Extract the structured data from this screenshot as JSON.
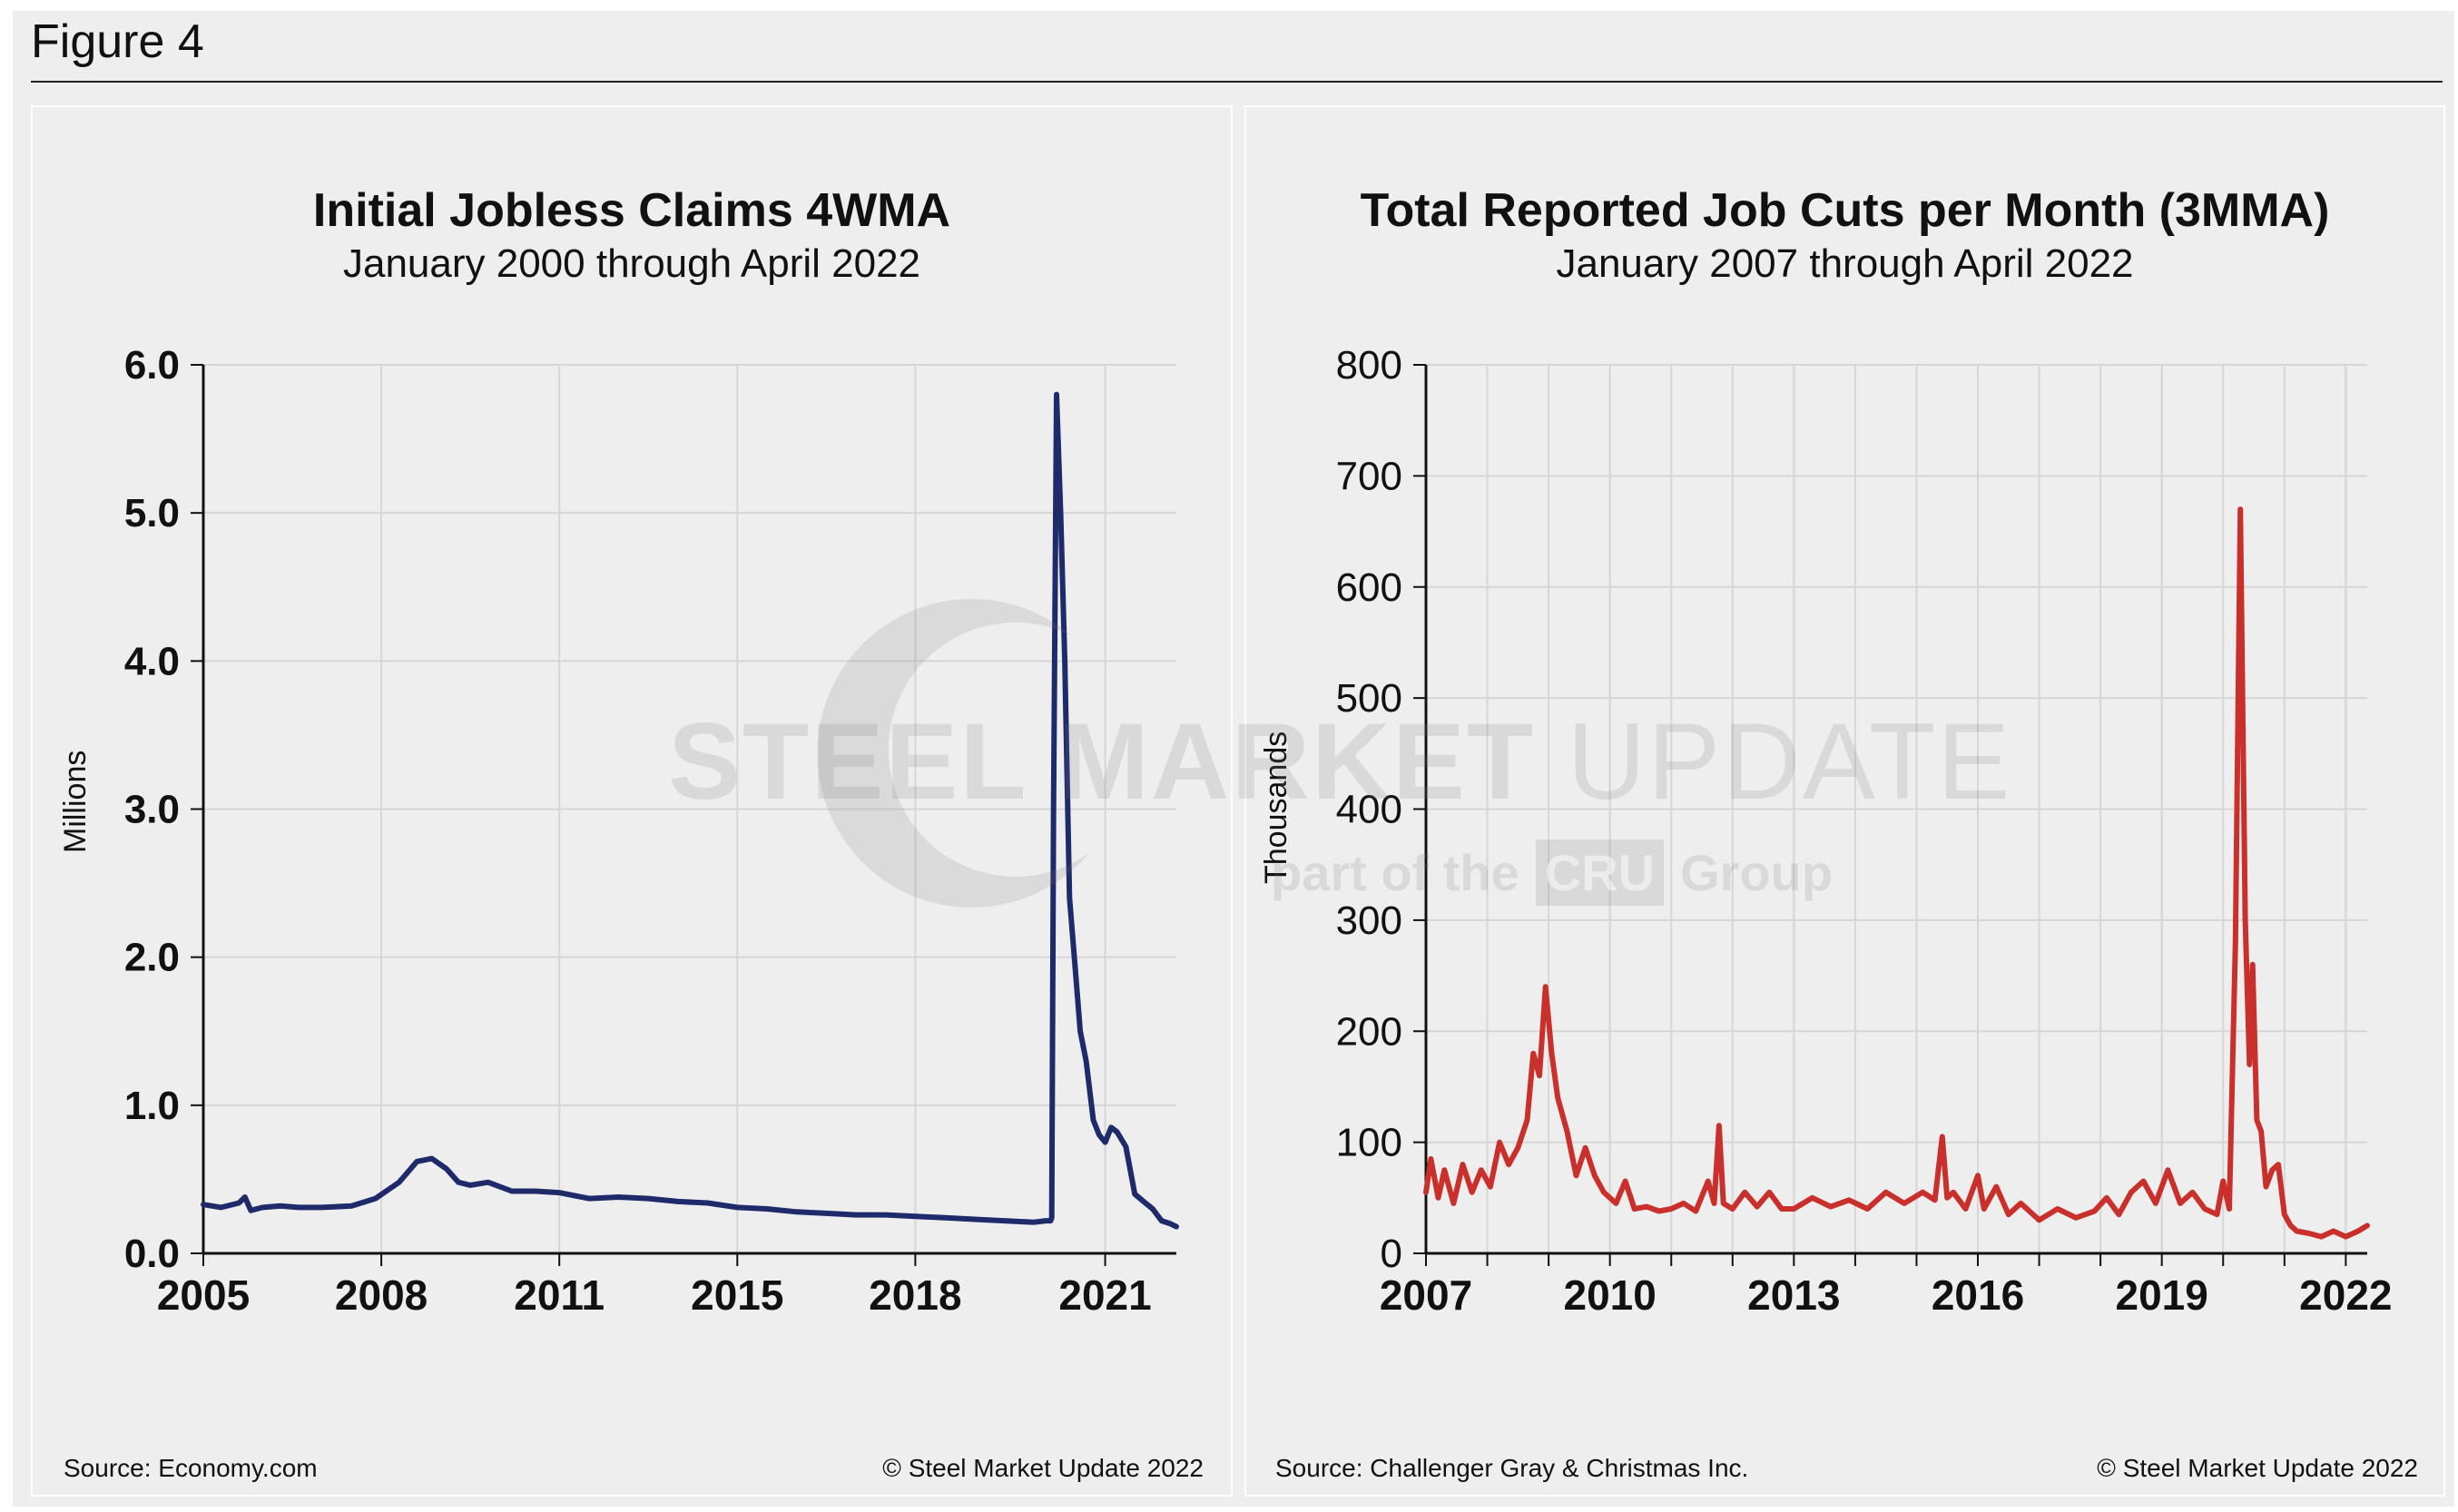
{
  "figure": {
    "title": "Figure 4"
  },
  "panels": [
    {
      "title": "Initial Jobless Claims 4WMA",
      "subtitle": "January 2000 through April 2022",
      "source": "Source: Economy.com",
      "copyright": "© Steel Market Update 2022"
    },
    {
      "title": "Total Reported Job Cuts per Month (3MMA)",
      "subtitle": "January 2007 through April 2022",
      "source": "Source: Challenger Gray & Christmas Inc.",
      "copyright": "© Steel Market Update 2022"
    }
  ],
  "watermark": {
    "line1_bold": "STEEL MARKET",
    "line1_light": "UPDATE",
    "line2_pre": "part of the",
    "line2_box": "CRU",
    "line2_post": "Group"
  },
  "chart_data": [
    {
      "type": "line",
      "title": "Initial Jobless Claims 4WMA",
      "subtitle": "January 2000 through April 2022",
      "xlabel": "",
      "ylabel": "Millions",
      "ylim": [
        0,
        6
      ],
      "xlim": [
        2005,
        2021.4
      ],
      "yticks": [
        "0.0",
        "1.0",
        "2.0",
        "3.0",
        "4.0",
        "5.0",
        "6.0"
      ],
      "xtick_labels": [
        {
          "label": "2005",
          "x": 2005
        },
        {
          "label": "2008",
          "x": 2008
        },
        {
          "label": "2011",
          "x": 2011
        },
        {
          "label": "2015",
          "x": 2014
        },
        {
          "label": "2018",
          "x": 2017
        },
        {
          "label": "2021",
          "x": 2020.2
        }
      ],
      "grid": true,
      "color": "#1f2a6b",
      "series": [
        {
          "x": [
            2005.0,
            2005.3,
            2005.6,
            2005.7,
            2005.8,
            2006.0,
            2006.3,
            2006.6,
            2007.0,
            2007.5,
            2007.9,
            2008.3,
            2008.6,
            2008.85,
            2009.1,
            2009.3,
            2009.5,
            2009.8,
            2010.2,
            2010.6,
            2011.0,
            2011.5,
            2012.0,
            2012.5,
            2013.0,
            2013.5,
            2014.0,
            2014.5,
            2015.0,
            2015.5,
            2016.0,
            2016.5,
            2017.0,
            2017.5,
            2018.0,
            2018.5,
            2019.0,
            2019.2,
            2019.28,
            2019.3,
            2019.33,
            2019.38,
            2019.45,
            2019.52,
            2019.6,
            2019.68,
            2019.78,
            2019.88,
            2020.0,
            2020.1,
            2020.2,
            2020.3,
            2020.4,
            2020.55,
            2020.7,
            2020.85,
            2021.0,
            2021.15,
            2021.3,
            2021.4
          ],
          "y": [
            0.33,
            0.31,
            0.34,
            0.38,
            0.29,
            0.31,
            0.32,
            0.31,
            0.31,
            0.32,
            0.37,
            0.48,
            0.62,
            0.64,
            0.57,
            0.48,
            0.46,
            0.48,
            0.42,
            0.42,
            0.41,
            0.37,
            0.38,
            0.37,
            0.35,
            0.34,
            0.31,
            0.3,
            0.28,
            0.27,
            0.26,
            0.26,
            0.25,
            0.24,
            0.23,
            0.22,
            0.21,
            0.22,
            0.22,
            0.24,
            3.0,
            5.8,
            5.0,
            4.0,
            2.4,
            2.0,
            1.5,
            1.3,
            0.9,
            0.8,
            0.75,
            0.85,
            0.82,
            0.72,
            0.4,
            0.35,
            0.3,
            0.22,
            0.2,
            0.18
          ]
        }
      ]
    },
    {
      "type": "line",
      "title": "Total Reported Job Cuts per Month (3MMA)",
      "subtitle": "January 2007 through April 2022",
      "xlabel": "",
      "ylabel": "Thousands",
      "ylim": [
        0,
        800
      ],
      "xlim": [
        2007,
        2022.35
      ],
      "yticks": [
        "0",
        "100",
        "200",
        "300",
        "400",
        "500",
        "600",
        "700",
        "800"
      ],
      "xtick_labels": [
        {
          "label": "2007",
          "x": 2007
        },
        {
          "label": "2010",
          "x": 2010
        },
        {
          "label": "2013",
          "x": 2013
        },
        {
          "label": "2016",
          "x": 2016
        },
        {
          "label": "2019",
          "x": 2019
        },
        {
          "label": "2022",
          "x": 2022
        }
      ],
      "grid": true,
      "color": "#c9302c",
      "series": [
        {
          "x": [
            2007.0,
            2007.08,
            2007.2,
            2007.3,
            2007.45,
            2007.6,
            2007.75,
            2007.9,
            2008.05,
            2008.2,
            2008.35,
            2008.5,
            2008.65,
            2008.75,
            2008.85,
            2008.95,
            2009.05,
            2009.15,
            2009.3,
            2009.45,
            2009.6,
            2009.75,
            2009.9,
            2010.1,
            2010.25,
            2010.4,
            2010.6,
            2010.8,
            2011.0,
            2011.2,
            2011.4,
            2011.6,
            2011.7,
            2011.78,
            2011.85,
            2012.0,
            2012.2,
            2012.4,
            2012.6,
            2012.8,
            2013.0,
            2013.3,
            2013.6,
            2013.9,
            2014.2,
            2014.5,
            2014.8,
            2015.1,
            2015.3,
            2015.42,
            2015.5,
            2015.6,
            2015.8,
            2016.0,
            2016.1,
            2016.3,
            2016.5,
            2016.7,
            2017.0,
            2017.3,
            2017.6,
            2017.9,
            2018.1,
            2018.3,
            2018.5,
            2018.7,
            2018.9,
            2019.1,
            2019.3,
            2019.5,
            2019.7,
            2019.9,
            2020.0,
            2020.1,
            2020.2,
            2020.28,
            2020.36,
            2020.43,
            2020.48,
            2020.55,
            2020.62,
            2020.7,
            2020.8,
            2020.9,
            2021.0,
            2021.1,
            2021.2,
            2021.4,
            2021.6,
            2021.8,
            2022.0,
            2022.2,
            2022.35
          ],
          "y": [
            55,
            85,
            50,
            75,
            45,
            80,
            55,
            75,
            60,
            100,
            80,
            95,
            120,
            180,
            160,
            240,
            180,
            140,
            110,
            70,
            95,
            70,
            55,
            45,
            65,
            40,
            42,
            38,
            40,
            45,
            38,
            65,
            45,
            115,
            45,
            40,
            55,
            42,
            55,
            40,
            40,
            50,
            42,
            48,
            40,
            55,
            45,
            55,
            48,
            105,
            50,
            55,
            40,
            70,
            40,
            60,
            35,
            45,
            30,
            40,
            32,
            38,
            50,
            35,
            55,
            65,
            45,
            75,
            45,
            55,
            40,
            35,
            65,
            40,
            280,
            670,
            300,
            170,
            260,
            120,
            110,
            60,
            75,
            80,
            35,
            25,
            20,
            18,
            15,
            20,
            15,
            20,
            25
          ]
        }
      ]
    }
  ]
}
